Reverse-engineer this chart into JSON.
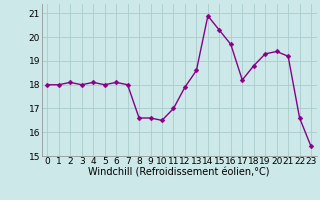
{
  "x": [
    0,
    1,
    2,
    3,
    4,
    5,
    6,
    7,
    8,
    9,
    10,
    11,
    12,
    13,
    14,
    15,
    16,
    17,
    18,
    19,
    20,
    21,
    22,
    23
  ],
  "y": [
    18.0,
    18.0,
    18.1,
    18.0,
    18.1,
    18.0,
    18.1,
    18.0,
    16.6,
    16.6,
    16.5,
    17.0,
    17.9,
    18.6,
    20.9,
    20.3,
    19.7,
    18.2,
    18.8,
    19.3,
    19.4,
    19.2,
    16.6,
    15.4
  ],
  "line_color": "#880088",
  "marker": "D",
  "marker_size": 2.5,
  "background_color": "#cce8e8",
  "grid_color": "#aacccc",
  "xlabel": "Windchill (Refroidissement éolien,°C)",
  "xlim": [
    -0.5,
    23.5
  ],
  "ylim": [
    15.0,
    21.4
  ],
  "yticks": [
    15,
    16,
    17,
    18,
    19,
    20,
    21
  ],
  "xticks": [
    0,
    1,
    2,
    3,
    4,
    5,
    6,
    7,
    8,
    9,
    10,
    11,
    12,
    13,
    14,
    15,
    16,
    17,
    18,
    19,
    20,
    21,
    22,
    23
  ],
  "xlabel_fontsize": 7,
  "tick_fontsize": 6.5,
  "line_width": 1.0
}
